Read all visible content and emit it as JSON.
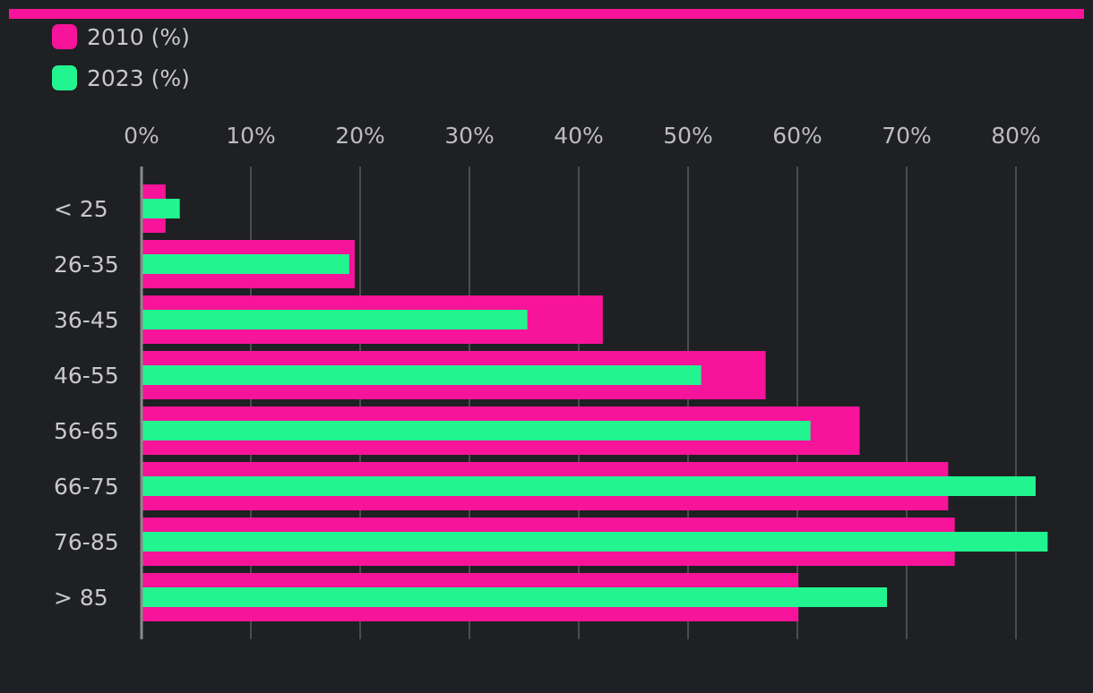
{
  "colors": {
    "background": "#1f2023",
    "accent_bar": "#f7139a",
    "series_2010": "#f7139a",
    "series_2023": "#22f58f",
    "grid": "#5a5a5a",
    "axis": "#8a8a8a"
  },
  "chart_data": {
    "type": "bar",
    "orientation": "horizontal",
    "title": "",
    "xlabel": "",
    "ylabel": "",
    "xlim": [
      0,
      85
    ],
    "x_ticks": [
      "0%",
      "10%",
      "20%",
      "30%",
      "40%",
      "50%",
      "60%",
      "70%",
      "80%"
    ],
    "x_tick_values": [
      0,
      10,
      20,
      30,
      40,
      50,
      60,
      70,
      80
    ],
    "categories": [
      "< 25",
      "26-35",
      "36-45",
      "46-55",
      "56-65",
      "66-75",
      "76-85",
      "> 85"
    ],
    "series": [
      {
        "name": "2010 (%)",
        "values": [
          2.2,
          19.5,
          42.2,
          57.1,
          65.7,
          73.8,
          74.4,
          60.1
        ]
      },
      {
        "name": "2023 (%)",
        "values": [
          3.5,
          19.0,
          35.3,
          51.2,
          61.2,
          81.8,
          82.9,
          68.2
        ]
      }
    ],
    "grid": true,
    "legend_position": "top-left",
    "tick_position": "top"
  }
}
